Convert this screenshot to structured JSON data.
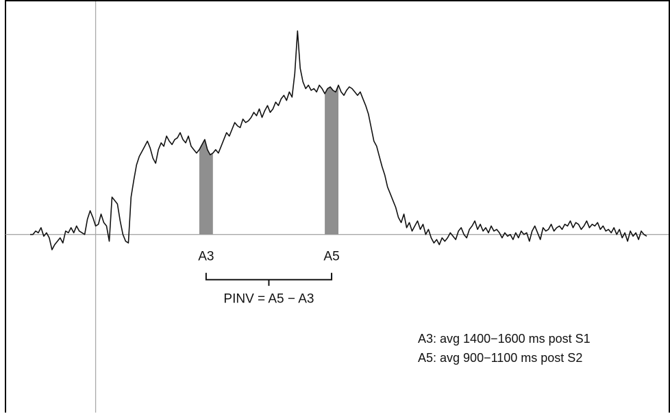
{
  "chart_data": {
    "type": "line",
    "title": "",
    "xlabel": "",
    "ylabel": "",
    "colors": {
      "line": "#111111",
      "window_fill": "#8f8f8f",
      "axis": "#a8a8a8",
      "frame": "#000000"
    },
    "series": [
      {
        "values": [
          0,
          0,
          0.02,
          0.01,
          0.04,
          -0.01,
          0.01,
          -0.02,
          -0.09,
          -0.06,
          -0.04,
          -0.02,
          -0.05,
          0.02,
          0.01,
          0.04,
          0.01,
          0.05,
          0.02,
          0.01,
          0,
          0.09,
          0.14,
          0.1,
          0.05,
          0.06,
          0.12,
          0.07,
          0.05,
          -0.04,
          0.22,
          0.2,
          0.18,
          0.08,
          0,
          -0.04,
          -0.05,
          0.22,
          0.32,
          0.41,
          0.46,
          0.49,
          0.52,
          0.55,
          0.51,
          0.45,
          0.42,
          0.5,
          0.54,
          0.52,
          0.58,
          0.55,
          0.53,
          0.56,
          0.57,
          0.6,
          0.56,
          0.54,
          0.58,
          0.52,
          0.5,
          0.48,
          0.5,
          0.53,
          0.56,
          0.5,
          0.47,
          0.48,
          0.5,
          0.48,
          0.52,
          0.56,
          0.6,
          0.58,
          0.62,
          0.66,
          0.64,
          0.63,
          0.68,
          0.66,
          0.67,
          0.69,
          0.72,
          0.7,
          0.74,
          0.69,
          0.73,
          0.76,
          0.72,
          0.74,
          0.78,
          0.76,
          0.8,
          0.82,
          0.79,
          0.84,
          0.81,
          0.95,
          1.2,
          0.98,
          0.9,
          0.86,
          0.88,
          0.85,
          0.86,
          0.84,
          0.88,
          0.86,
          0.83,
          0.86,
          0.87,
          0.85,
          0.84,
          0.88,
          0.84,
          0.82,
          0.85,
          0.87,
          0.86,
          0.84,
          0.82,
          0.84,
          0.8,
          0.76,
          0.71,
          0.63,
          0.55,
          0.52,
          0.46,
          0.4,
          0.35,
          0.28,
          0.24,
          0.2,
          0.16,
          0.1,
          0.07,
          0.12,
          0.04,
          0.07,
          0.02,
          0.05,
          0.08,
          0.03,
          0.06,
          0,
          0.03,
          -0.02,
          -0.05,
          -0.03,
          -0.06,
          -0.02,
          -0.04,
          -0.02,
          0.01,
          -0.01,
          -0.03,
          0.02,
          0.04,
          0,
          -0.02,
          0.03,
          0.05,
          0.08,
          0.03,
          0.06,
          0.02,
          0.04,
          0.01,
          0.05,
          0.02,
          0.03,
          0.01,
          -0.02,
          0.01,
          -0.01,
          0,
          -0.03,
          0.01,
          -0.02,
          0.02,
          0,
          0.01,
          -0.04,
          0.02,
          0.05,
          0.01,
          -0.03,
          0.04,
          0.02,
          0.03,
          0.06,
          0.02,
          0.04,
          0.05,
          0.03,
          0.06,
          0.05,
          0.08,
          0.04,
          0.07,
          0.06,
          0.03,
          0.05,
          0.08,
          0.04,
          0.06,
          0.05,
          0.07,
          0.03,
          0.05,
          0.02,
          0.03,
          0.01,
          0.04,
          0,
          0.03,
          -0.02,
          0.01,
          -0.04,
          0.02,
          -0.01,
          0.01,
          -0.03,
          0.02,
          0,
          -0.01
        ]
      }
    ],
    "windows": [
      {
        "label": "A3",
        "start_index": 62,
        "end_index": 67
      },
      {
        "label": "A5",
        "start_index": 108,
        "end_index": 113
      }
    ],
    "ylim": [
      -1.05,
      1.35
    ],
    "stimulus_marker_index": 24,
    "formula": "PINV = A5 − A3",
    "notes": [
      "A3: avg 1400−1600 ms post S1",
      "A5: avg 900−1100 ms post S2"
    ],
    "grid": false,
    "legend": "none"
  }
}
